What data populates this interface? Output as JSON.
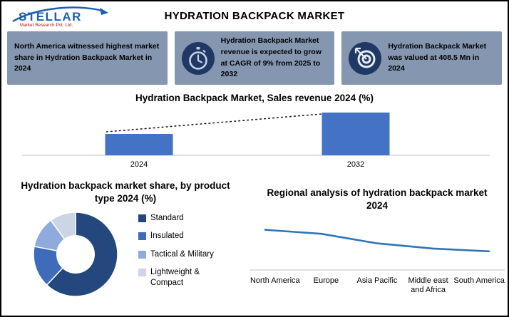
{
  "page": {
    "title": "HYDRATION BACKPACK MARKET"
  },
  "logo": {
    "brand": "STELLAR",
    "tagline": "Market Research Pvt. Ltd."
  },
  "colors": {
    "card_background": "#8496B0",
    "icon_circle": "#1F3864",
    "axis": "#BFBFBF",
    "trendline": "#1A1A1A",
    "accent_blue": "#4472C4"
  },
  "info_cards": [
    {
      "icon": "none",
      "text": "North America witnessed highest market share in Hydration Backpack Market in 2024"
    },
    {
      "icon": "stopwatch-icon",
      "text": "Hydration Backpack Market revenue is expected to grow at CAGR of 9% from 2025 to 2032"
    },
    {
      "icon": "target-icon",
      "text": "Hydration Backpack Market was valued at 408.5 Mn in 2024"
    }
  ],
  "chart_data": [
    {
      "type": "bar",
      "title": "Hydration Backpack Market, Sales revenue 2024 (%)",
      "categories": [
        "2024",
        "2032"
      ],
      "values": [
        408.5,
        814
      ],
      "bar_color": "#4472C4",
      "trendline": true,
      "y_axis_labels": false
    },
    {
      "type": "pie",
      "subtype": "donut",
      "title": "Hydration backpack market share, by product type 2024 (%)",
      "labels": [
        "Standard",
        "Insulated",
        "Tactical & Military",
        "Lightweight & Compact"
      ],
      "values": [
        62,
        16,
        12,
        10
      ],
      "colors": [
        "#24477E",
        "#3E6CB8",
        "#8FAADC",
        "#CCD5E5"
      ],
      "legend_position": "right"
    },
    {
      "type": "line",
      "title": "Regional analysis of hydration backpack market 2024",
      "categories": [
        "North America",
        "Europe",
        "Asia Pacific",
        "Middle east and Africa",
        "South America"
      ],
      "values": [
        90,
        80,
        56,
        43,
        36
      ],
      "ylim": [
        0,
        100
      ],
      "line_color": "#2E75B6",
      "grid": false
    }
  ]
}
